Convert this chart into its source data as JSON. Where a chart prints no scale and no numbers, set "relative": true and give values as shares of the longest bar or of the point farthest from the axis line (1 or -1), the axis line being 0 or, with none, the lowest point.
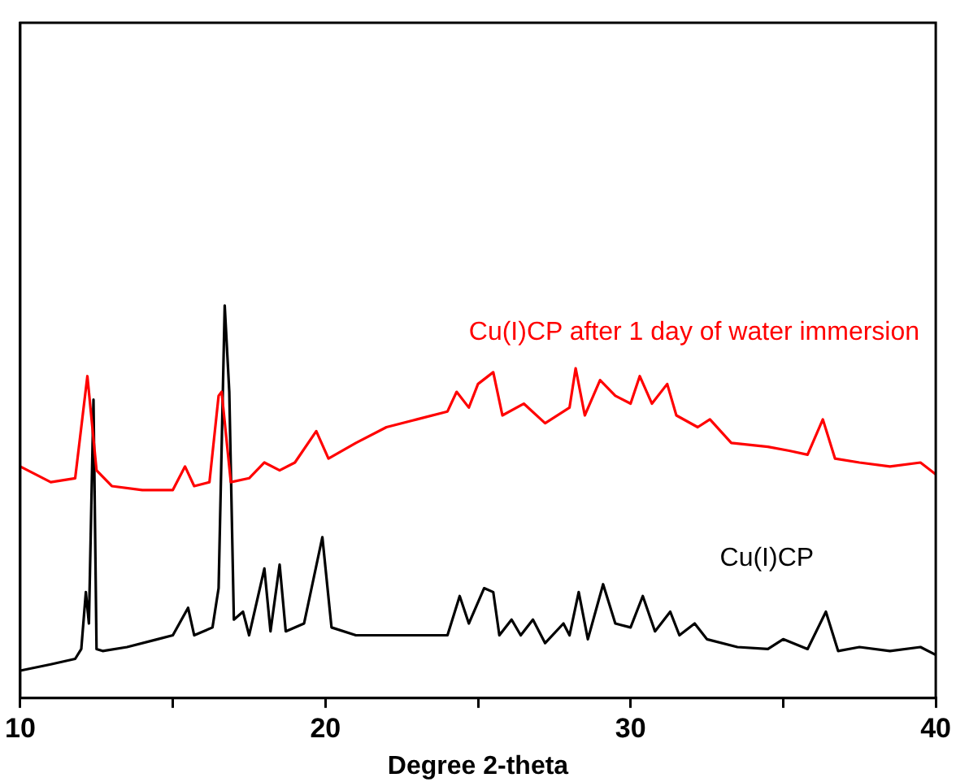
{
  "chart_data": {
    "type": "line",
    "xlabel": "Degree 2-theta",
    "relative": true,
    "tick_labels": "x",
    "grid": false,
    "legend": false,
    "marker": "none",
    "xlim": [
      10,
      40
    ],
    "xticks": [
      10,
      {
        "value": 15,
        "label": null
      },
      20,
      {
        "value": 25,
        "label": null
      },
      30,
      {
        "value": 35,
        "label": null
      },
      40
    ],
    "series": [
      {
        "name": "Cu(I)CP after 1 day of water immersion",
        "color": "#ff0000",
        "x": [
          10,
          11,
          11.8,
          12.2,
          12.5,
          13,
          14,
          15,
          15.4,
          15.7,
          16.2,
          16.5,
          16.6,
          16.9,
          17.5,
          18,
          18.5,
          19,
          19.7,
          20.1,
          21,
          22,
          23,
          24,
          24.3,
          24.7,
          25,
          25.5,
          25.8,
          26.5,
          27.2,
          28,
          28.2,
          28.5,
          29,
          29.5,
          30,
          30.3,
          30.7,
          31.2,
          31.5,
          32.2,
          32.6,
          33.3,
          34.5,
          35.2,
          35.8,
          36.3,
          36.7,
          37.5,
          38.5,
          39.5,
          40
        ],
        "values": [
          0.59,
          0.55,
          0.56,
          0.82,
          0.58,
          0.54,
          0.53,
          0.53,
          0.59,
          0.54,
          0.55,
          0.77,
          0.78,
          0.55,
          0.56,
          0.6,
          0.58,
          0.6,
          0.68,
          0.61,
          0.65,
          0.69,
          0.71,
          0.73,
          0.78,
          0.74,
          0.8,
          0.83,
          0.72,
          0.75,
          0.7,
          0.74,
          0.84,
          0.72,
          0.81,
          0.77,
          0.75,
          0.82,
          0.75,
          0.8,
          0.72,
          0.69,
          0.71,
          0.65,
          0.64,
          0.63,
          0.62,
          0.71,
          0.61,
          0.6,
          0.59,
          0.6,
          0.57
        ]
      },
      {
        "name": "Cu(I)CP",
        "color": "#000000",
        "x": [
          10,
          11,
          11.8,
          12,
          12.15,
          12.25,
          12.4,
          12.5,
          12.7,
          13.5,
          14.5,
          15,
          15.5,
          15.7,
          16.3,
          16.5,
          16.7,
          16.85,
          17,
          17.3,
          17.5,
          18,
          18.2,
          18.5,
          18.7,
          19.3,
          19.9,
          20.2,
          21,
          22,
          23,
          24,
          24.4,
          24.7,
          25.2,
          25.5,
          25.7,
          26.1,
          26.4,
          26.8,
          27.2,
          27.8,
          28,
          28.3,
          28.6,
          29.1,
          29.5,
          30,
          30.4,
          30.8,
          31.3,
          31.6,
          32.1,
          32.5,
          33.5,
          34.5,
          35,
          35.8,
          36.4,
          36.8,
          37.5,
          38.5,
          39.5,
          40
        ],
        "values": [
          0.07,
          0.086,
          0.1,
          0.125,
          0.27,
          0.19,
          0.76,
          0.125,
          0.12,
          0.13,
          0.15,
          0.16,
          0.23,
          0.16,
          0.18,
          0.28,
          1,
          0.78,
          0.2,
          0.22,
          0.16,
          0.33,
          0.17,
          0.34,
          0.17,
          0.19,
          0.41,
          0.18,
          0.16,
          0.16,
          0.16,
          0.16,
          0.26,
          0.19,
          0.28,
          0.27,
          0.16,
          0.2,
          0.16,
          0.2,
          0.14,
          0.19,
          0.16,
          0.27,
          0.15,
          0.29,
          0.19,
          0.18,
          0.26,
          0.17,
          0.22,
          0.16,
          0.19,
          0.15,
          0.13,
          0.125,
          0.15,
          0.125,
          0.22,
          0.12,
          0.13,
          0.12,
          0.13,
          0.11
        ]
      }
    ]
  }
}
